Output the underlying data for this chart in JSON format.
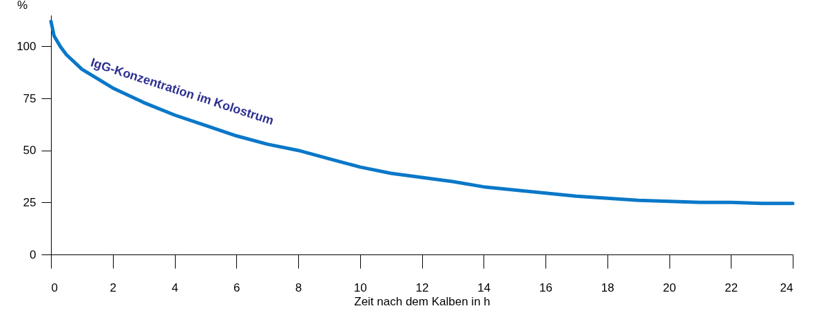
{
  "chart_data": {
    "type": "line",
    "xlabel": "Zeit nach dem Kalben in h",
    "ylabel": "%",
    "x": [
      0,
      0.1,
      0.3,
      0.5,
      1,
      2,
      3,
      4,
      5,
      6,
      7,
      8,
      9,
      10,
      11,
      12,
      13,
      14,
      15,
      16,
      17,
      18,
      19,
      20,
      21,
      22,
      23,
      24
    ],
    "series": [
      {
        "name": "IgG-Konzentration im Kolostrum",
        "color": "#0a78c8",
        "values": [
          112,
          105,
          100,
          96,
          89,
          80,
          73,
          67,
          62,
          57,
          53,
          50,
          46,
          42,
          39,
          37,
          35,
          32.5,
          31,
          29.5,
          28,
          27,
          26,
          25.5,
          25,
          25,
          24.5,
          24.5
        ]
      }
    ],
    "xlim": [
      0,
      24
    ],
    "xticks": [
      0,
      2,
      4,
      6,
      8,
      10,
      12,
      14,
      16,
      18,
      20,
      22,
      24
    ],
    "ylim": [
      0,
      115
    ],
    "yticks": [
      0,
      25,
      50,
      75,
      100
    ],
    "grid": false,
    "legend": false,
    "marker": "none",
    "line_style": "solid"
  }
}
